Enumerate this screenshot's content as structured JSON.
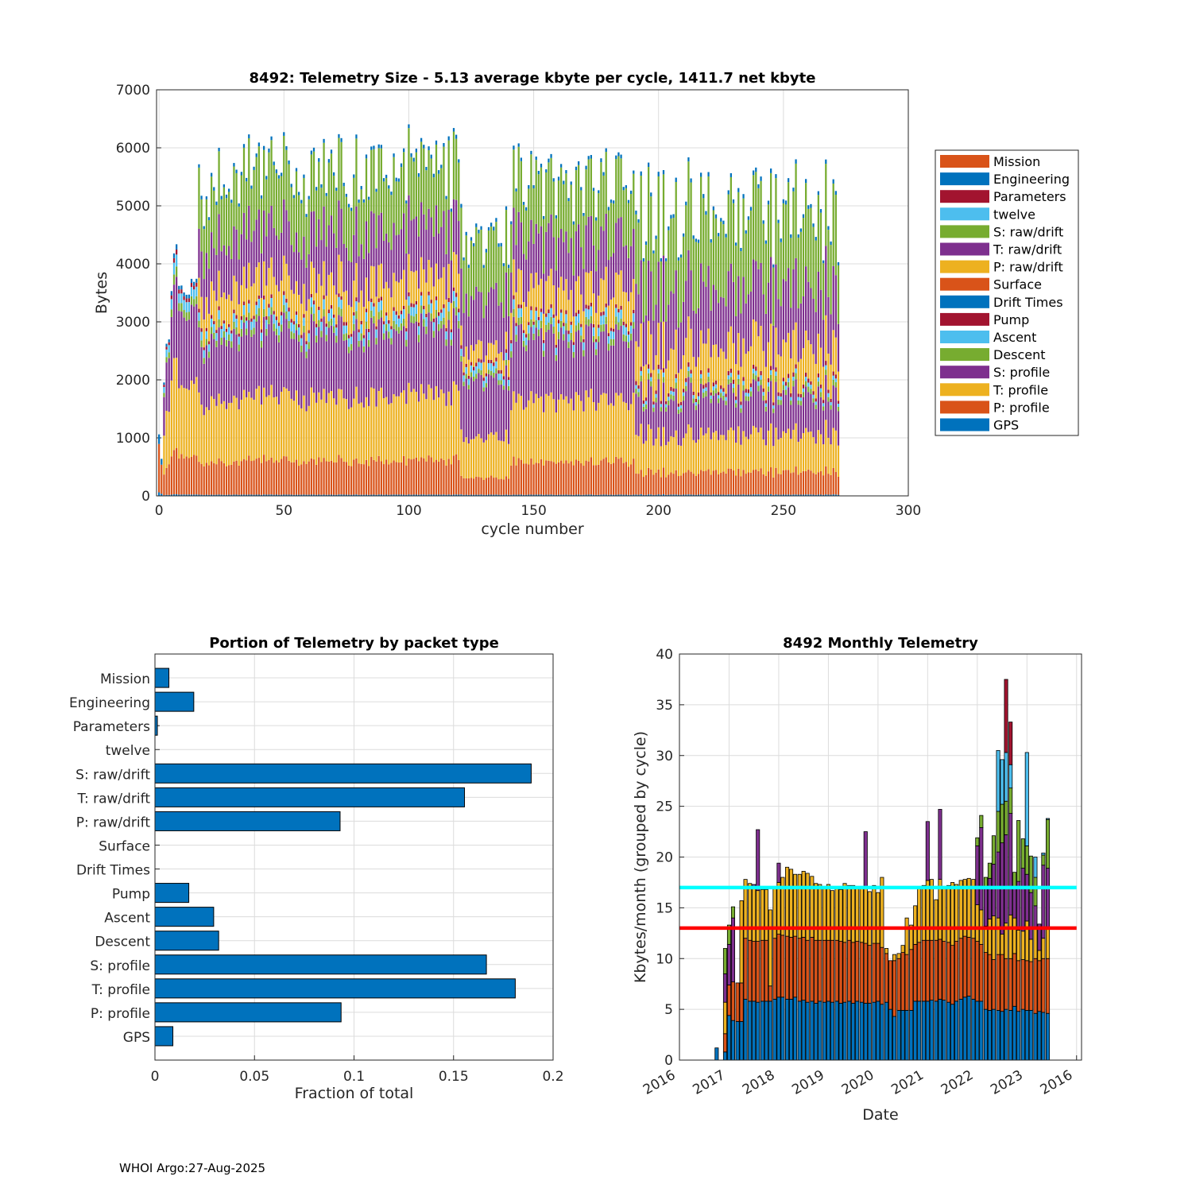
{
  "footer": "WHOI Argo:27-Aug-2025",
  "colors": {
    "blue": "#0072BD",
    "orange": "#D95319",
    "yellow": "#EDB120",
    "purple": "#7E2F8E",
    "green": "#77AC30",
    "cyan": "#4DBEEE",
    "maroon": "#A2142F",
    "hline_cyan": "#00FFFF",
    "hline_red": "#FF0000"
  },
  "chart_data": [
    {
      "id": "telemetry-size",
      "type": "bar",
      "stacked": true,
      "title": "8492: Telemetry Size - 5.13 average kbyte per cycle, 1411.7 net kbyte",
      "xlabel": "cycle number",
      "ylabel": "Bytes",
      "xlim": [
        -1,
        300
      ],
      "ylim": [
        0,
        7000
      ],
      "xticks": [
        "0",
        "50",
        "100",
        "150",
        "200",
        "250",
        "300"
      ],
      "yticks": [
        "0",
        "1000",
        "2000",
        "3000",
        "4000",
        "5000",
        "6000",
        "7000"
      ],
      "grid": true,
      "legend_position": "right",
      "legend": [
        "Mission",
        "Engineering",
        "Parameters",
        "twelve",
        "S: raw/drift",
        "T: raw/drift",
        "P: raw/drift",
        "Surface",
        "Drift Times",
        "Pump",
        "Ascent",
        "Descent",
        "S: profile",
        "T: profile",
        "P: profile",
        "GPS"
      ],
      "legend_colors": [
        "#D95319",
        "#0072BD",
        "#A2142F",
        "#4DBEEE",
        "#77AC30",
        "#7E2F8E",
        "#EDB120",
        "#D95319",
        "#0072BD",
        "#A2142F",
        "#4DBEEE",
        "#77AC30",
        "#7E2F8E",
        "#EDB120",
        "#D95319",
        "#0072BD"
      ],
      "stack_order": [
        "GPS",
        "P: profile",
        "T: profile",
        "S: profile",
        "Descent",
        "Ascent",
        "Pump",
        "P: raw/drift",
        "T: raw/drift",
        "S: raw/drift",
        "Engineering"
      ],
      "stack_colors": [
        "#0072BD",
        "#D95319",
        "#EDB120",
        "#7E2F8E",
        "#77AC30",
        "#4DBEEE",
        "#A2142F",
        "#EDB120",
        "#7E2F8E",
        "#77AC30",
        "#0072BD"
      ],
      "n_cycles": 273,
      "phase_profiles": [
        {
          "cycles": [
            0,
            1
          ],
          "totals_bytes": [
            1100,
            650
          ],
          "stack_bytes": [
            20,
            300,
            0,
            0,
            0,
            0,
            0,
            0,
            0,
            0,
            60
          ]
        },
        {
          "cycles": [
            2,
            7
          ],
          "totals_bytes": [
            2000,
            2600,
            2700,
            3500,
            4200,
            4350
          ],
          "stack_bytes": [
            20,
            580,
            1100,
            1000,
            120,
            150,
            60,
            0,
            0,
            0,
            60
          ]
        },
        {
          "cycles": [
            8,
            15
          ],
          "totals_bytes": [
            3600,
            3650,
            3620,
            3640,
            3680,
            3600,
            3650,
            3700
          ],
          "stack_bytes": [
            20,
            580,
            1100,
            1100,
            120,
            150,
            60,
            0,
            0,
            0,
            60
          ]
        },
        {
          "cycles": [
            16,
            120
          ],
          "typical_total_bytes": 5600,
          "max_total_bytes": 6300,
          "stack_bytes": [
            20,
            580,
            1100,
            1100,
            120,
            150,
            60,
            550,
            850,
            1000,
            60
          ]
        },
        {
          "cycles": [
            121,
            140
          ],
          "typical_total_bytes": 4700,
          "min_total_bytes": 3900,
          "stack_bytes": [
            20,
            300,
            700,
            1000,
            80,
            120,
            60,
            300,
            900,
            1000,
            60
          ]
        },
        {
          "cycles": [
            141,
            190
          ],
          "typical_total_bytes": 5600,
          "max_total_bytes": 6100,
          "stack_bytes": [
            20,
            580,
            1100,
            1100,
            120,
            150,
            60,
            550,
            850,
            1000,
            60
          ]
        },
        {
          "cycles": [
            191,
            272
          ],
          "typical_total_bytes": 4800,
          "max_total_bytes": 5900,
          "stack_bytes": [
            20,
            360,
            600,
            620,
            80,
            60,
            60,
            600,
            900,
            1200,
            60
          ]
        }
      ]
    },
    {
      "id": "portion-by-packet",
      "type": "bar",
      "orientation": "horizontal",
      "title": "Portion of Telemetry by packet type",
      "xlabel": "Fraction of total",
      "ylabel": "",
      "xlim": [
        0,
        0.2
      ],
      "xticks": [
        "0",
        "0.05",
        "0.1",
        "0.15",
        "0.2"
      ],
      "grid": true,
      "categories": [
        "Mission",
        "Engineering",
        "Parameters",
        "twelve",
        "S: raw/drift",
        "T: raw/drift",
        "P: raw/drift",
        "Surface",
        "Drift Times",
        "Pump",
        "Ascent",
        "Descent",
        "S: profile",
        "T: profile",
        "P: profile",
        "GPS"
      ],
      "values": [
        0.007,
        0.0195,
        0.0012,
        0,
        0.189,
        0.1555,
        0.093,
        0,
        0,
        0.017,
        0.0295,
        0.032,
        0.1665,
        0.181,
        0.0935,
        0.009
      ]
    },
    {
      "id": "monthly-telemetry",
      "type": "bar",
      "stacked": true,
      "title": "8492 Monthly Telemetry",
      "xlabel": "Date",
      "ylabel": "Kbytes/month (grouped by cycle)",
      "ylim": [
        0,
        40
      ],
      "yticks": [
        "0",
        "5",
        "10",
        "15",
        "20",
        "25",
        "30",
        "35",
        "40"
      ],
      "xticks": [
        "2016",
        "2017",
        "2018",
        "2019",
        "2020",
        "2021",
        "2022",
        "2023",
        "2016"
      ],
      "xlim_years": [
        2016.0,
        2024.1
      ],
      "grid": true,
      "reference_lines": [
        {
          "y": 17,
          "color": "#00FFFF"
        },
        {
          "y": 13,
          "color": "#FF0000"
        }
      ],
      "stack_order": [
        "GPS+P: profile",
        "T: profile",
        "S: profile",
        "raw/drift",
        "Descent",
        "Ascent",
        "Pump"
      ],
      "stack_colors": [
        "#0072BD",
        "#D95319",
        "#EDB120",
        "#7E2F8E",
        "#77AC30",
        "#4DBEEE",
        "#A2142F"
      ],
      "months": [
        {
          "t": 2016.75,
          "stack": [
            1.2
          ]
        },
        {
          "t": 2016.92,
          "stack": [
            0.8,
            1.8,
            3.1,
            2.8,
            2.5
          ]
        },
        {
          "t": 2017.0,
          "stack": [
            4.4,
            3.0,
            0,
            4.0,
            1.9
          ]
        },
        {
          "t": 2017.08,
          "stack": [
            3.9,
            3.8,
            0,
            6.3,
            1.1
          ]
        },
        {
          "t": 2017.17,
          "stack": [
            3.8,
            3.8,
            0,
            0,
            0
          ]
        },
        {
          "t": 2017.25,
          "stack": [
            3.8,
            3.8,
            8.1
          ]
        },
        {
          "t": 2017.33,
          "stack": [
            6.0,
            6.0,
            5.8
          ]
        },
        {
          "t": 2017.42,
          "stack": [
            5.8,
            6.0,
            5.6
          ]
        },
        {
          "t": 2017.5,
          "stack": [
            5.8,
            5.9,
            5.3,
            0.3
          ]
        },
        {
          "t": 2017.58,
          "stack": [
            5.7,
            6.0,
            5.0,
            6.0
          ]
        },
        {
          "t": 2017.67,
          "stack": [
            5.8,
            6.0,
            5.0
          ]
        },
        {
          "t": 2017.75,
          "stack": [
            5.8,
            6.0,
            5.0
          ]
        },
        {
          "t": 2017.83,
          "stack": [
            5.8,
            1.5,
            7.5
          ]
        },
        {
          "t": 2017.92,
          "stack": [
            6.0,
            6.0,
            5.0
          ]
        },
        {
          "t": 2018.0,
          "stack": [
            6.2,
            6.2,
            5.1,
            1.9
          ]
        },
        {
          "t": 2018.08,
          "stack": [
            6.2,
            6.1,
            5.7
          ]
        },
        {
          "t": 2018.17,
          "stack": [
            6.0,
            6.2,
            6.8
          ]
        },
        {
          "t": 2018.25,
          "stack": [
            6.0,
            6.1,
            6.7
          ]
        },
        {
          "t": 2018.33,
          "stack": [
            6.2,
            6.0,
            6.1
          ]
        },
        {
          "t": 2018.42,
          "stack": [
            5.8,
            6.2,
            6.3
          ]
        },
        {
          "t": 2018.5,
          "stack": [
            5.9,
            6.2,
            6.5
          ]
        },
        {
          "t": 2018.58,
          "stack": [
            5.7,
            6.1,
            6.6
          ]
        },
        {
          "t": 2018.67,
          "stack": [
            5.8,
            6.3,
            6.0
          ]
        },
        {
          "t": 2018.75,
          "stack": [
            5.6,
            6.2,
            5.6
          ]
        },
        {
          "t": 2018.83,
          "stack": [
            5.8,
            6.0,
            5.5
          ]
        },
        {
          "t": 2018.92,
          "stack": [
            5.7,
            6.1,
            5.3
          ]
        },
        {
          "t": 2019.0,
          "stack": [
            5.8,
            6.0,
            5.5
          ]
        },
        {
          "t": 2019.08,
          "stack": [
            5.7,
            6.1,
            4.9
          ]
        },
        {
          "t": 2019.17,
          "stack": [
            5.8,
            6.0,
            5.3
          ]
        },
        {
          "t": 2019.25,
          "stack": [
            5.6,
            6.1,
            5.1
          ]
        },
        {
          "t": 2019.33,
          "stack": [
            5.7,
            5.9,
            5.8
          ]
        },
        {
          "t": 2019.42,
          "stack": [
            5.8,
            6.0,
            5.4
          ]
        },
        {
          "t": 2019.5,
          "stack": [
            5.6,
            6.0,
            5.6
          ]
        },
        {
          "t": 2019.58,
          "stack": [
            5.8,
            5.9,
            5.4
          ]
        },
        {
          "t": 2019.67,
          "stack": [
            5.7,
            5.9,
            5.4
          ]
        },
        {
          "t": 2019.75,
          "stack": [
            5.6,
            5.9,
            5.5,
            5.5
          ]
        },
        {
          "t": 2019.83,
          "stack": [
            5.6,
            5.7,
            5.3
          ]
        },
        {
          "t": 2019.92,
          "stack": [
            5.7,
            5.8,
            5.7
          ]
        },
        {
          "t": 2020.0,
          "stack": [
            5.8,
            5.7,
            5.0
          ]
        },
        {
          "t": 2020.08,
          "stack": [
            5.5,
            5.6,
            6.9
          ]
        },
        {
          "t": 2020.17,
          "stack": [
            5.7,
            4.8,
            0.5
          ]
        },
        {
          "t": 2020.25,
          "stack": [
            5.0,
            4.8,
            0
          ]
        },
        {
          "t": 2020.33,
          "stack": [
            4.3,
            5.5,
            0.6
          ]
        },
        {
          "t": 2020.42,
          "stack": [
            4.9,
            5.1,
            0.5
          ]
        },
        {
          "t": 2020.5,
          "stack": [
            4.9,
            5.7,
            0.7
          ]
        },
        {
          "t": 2020.58,
          "stack": [
            4.9,
            5.5,
            3.6
          ]
        },
        {
          "t": 2020.67,
          "stack": [
            4.9,
            6.0,
            2.4
          ]
        },
        {
          "t": 2020.75,
          "stack": [
            5.8,
            5.6,
            3.8
          ]
        },
        {
          "t": 2020.83,
          "stack": [
            5.8,
            5.8,
            5.3
          ]
        },
        {
          "t": 2020.92,
          "stack": [
            5.8,
            6.0,
            5.4
          ]
        },
        {
          "t": 2021.0,
          "stack": [
            5.8,
            6.0,
            5.9,
            5.8
          ]
        },
        {
          "t": 2021.08,
          "stack": [
            5.9,
            5.9,
            6.0
          ]
        },
        {
          "t": 2021.17,
          "stack": [
            5.8,
            6.0,
            4.0
          ]
        },
        {
          "t": 2021.25,
          "stack": [
            6.0,
            5.9,
            5.9,
            6.9
          ]
        },
        {
          "t": 2021.33,
          "stack": [
            5.9,
            5.8,
            5.2
          ]
        },
        {
          "t": 2021.42,
          "stack": [
            5.7,
            5.9,
            5.6
          ]
        },
        {
          "t": 2021.5,
          "stack": [
            5.5,
            5.8,
            6.2
          ]
        },
        {
          "t": 2021.58,
          "stack": [
            5.8,
            5.9,
            5.6
          ]
        },
        {
          "t": 2021.67,
          "stack": [
            6.0,
            6.0,
            5.7
          ]
        },
        {
          "t": 2021.75,
          "stack": [
            6.2,
            6.0,
            5.6
          ]
        },
        {
          "t": 2021.83,
          "stack": [
            6.3,
            5.8,
            5.8
          ]
        },
        {
          "t": 2021.92,
          "stack": [
            6.0,
            6.0,
            5.8
          ]
        },
        {
          "t": 2022.0,
          "stack": [
            5.8,
            5.9,
            3.6,
            5.8,
            0.8
          ]
        },
        {
          "t": 2022.08,
          "stack": [
            5.8,
            5.6,
            3.4,
            8.1,
            1.2
          ]
        },
        {
          "t": 2022.17,
          "stack": [
            5.0,
            5.6,
            2.6,
            3.8,
            1.0
          ]
        },
        {
          "t": 2022.25,
          "stack": [
            4.9,
            5.5,
            3.5,
            4.0,
            1.5
          ]
        },
        {
          "t": 2022.33,
          "stack": [
            5.0,
            4.9,
            4.3,
            5.1,
            2.8
          ]
        },
        {
          "t": 2022.42,
          "stack": [
            4.9,
            5.5,
            3.6,
            6.5,
            4.0,
            6.0
          ]
        },
        {
          "t": 2022.5,
          "stack": [
            4.8,
            5.6,
            2.0,
            9.0,
            3.8,
            4.4
          ]
        },
        {
          "t": 2022.58,
          "stack": [
            5.0,
            5.0,
            3.5,
            8.7,
            3.3,
            4.8,
            7.2
          ]
        },
        {
          "t": 2022.67,
          "stack": [
            4.9,
            5.1,
            4.3,
            10.0,
            2.5,
            2.3,
            4.2
          ]
        },
        {
          "t": 2022.75,
          "stack": [
            5.3,
            5.2,
            3.5,
            3.0,
            1.5
          ]
        },
        {
          "t": 2022.83,
          "stack": [
            4.8,
            5.0,
            3.0,
            4.8,
            6.0
          ]
        },
        {
          "t": 2022.92,
          "stack": [
            5.0,
            4.9,
            2.8,
            6.2,
            2.9
          ]
        },
        {
          "t": 2023.0,
          "stack": [
            4.9,
            4.9,
            3.9,
            4.6,
            2.8,
            9.2
          ]
        },
        {
          "t": 2023.08,
          "stack": [
            4.9,
            4.8,
            2.2,
            4.6,
            3.6
          ]
        },
        {
          "t": 2023.17,
          "stack": [
            4.6,
            5.4,
            3.0,
            2.2,
            2.8,
            2.0
          ]
        },
        {
          "t": 2023.25,
          "stack": [
            4.8,
            5.0,
            1.0,
            2.6,
            0
          ]
        },
        {
          "t": 2023.33,
          "stack": [
            4.7,
            5.3,
            2.0,
            7.2,
            1.0,
            0.2
          ]
        },
        {
          "t": 2023.42,
          "stack": [
            4.6,
            5.4,
            3.0,
            5.9,
            4.8,
            0.1
          ]
        }
      ]
    }
  ]
}
